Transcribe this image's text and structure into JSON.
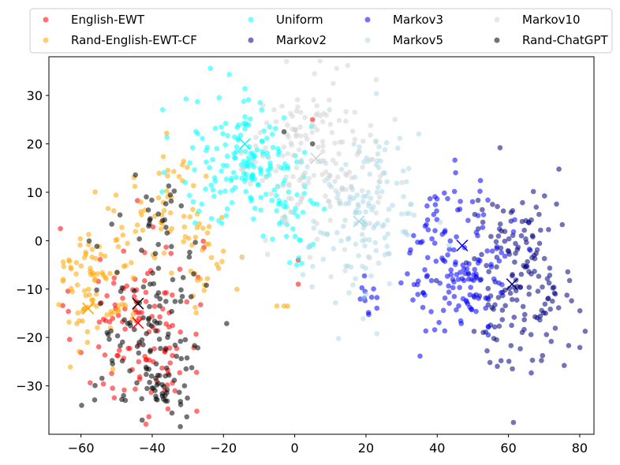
{
  "chart_data": {
    "type": "scatter",
    "title": "",
    "xlabel": "",
    "ylabel": "",
    "xlim": [
      -69,
      84
    ],
    "ylim": [
      -40,
      38
    ],
    "x_ticks": [
      -60,
      -40,
      -20,
      0,
      20,
      40,
      60,
      80
    ],
    "y_ticks": [
      -30,
      -20,
      -10,
      0,
      10,
      20,
      30
    ],
    "legend_position": "top (above plot, 4 columns)",
    "legend_columns": 4,
    "series": [
      {
        "name": "English-EWT",
        "color": "#ff0000",
        "centroid": [
          -44,
          -17
        ],
        "clusters": [
          {
            "cx": -44,
            "cy": -17,
            "sx": 9,
            "sy": 10,
            "n": 120
          }
        ],
        "points": [
          [
            1,
            -4
          ],
          [
            5,
            25
          ],
          [
            1,
            -9
          ]
        ]
      },
      {
        "name": "Rand-English-EWT-CF",
        "color": "#ffa500",
        "centroid": [
          -58,
          -14
        ],
        "clusters": [
          {
            "cx": -56,
            "cy": -8,
            "sx": 6,
            "sy": 7,
            "n": 90
          },
          {
            "cx": -35,
            "cy": 6,
            "sx": 7,
            "sy": 6,
            "n": 55
          },
          {
            "cx": -25,
            "cy": -5,
            "sx": 4,
            "sy": 5,
            "n": 25
          }
        ],
        "points": [
          [
            -5,
            -13.5
          ],
          [
            -3,
            -13.5
          ],
          [
            -2,
            -13.5
          ]
        ]
      },
      {
        "name": "Uniform",
        "color": "#00ffff",
        "centroid": [
          -14,
          20
        ],
        "clusters": [
          {
            "cx": -14,
            "cy": 16,
            "sx": 9,
            "sy": 7,
            "n": 160
          },
          {
            "cx": 0,
            "cy": 8,
            "sx": 5,
            "sy": 7,
            "n": 40
          }
        ],
        "points": []
      },
      {
        "name": "Markov2",
        "color": "#000080",
        "centroid": [
          61,
          -9
        ],
        "clusters": [
          {
            "cx": 63,
            "cy": -8,
            "sx": 8,
            "sy": 9,
            "n": 180
          }
        ],
        "points": []
      },
      {
        "name": "Markov3",
        "color": "#0000ff",
        "centroid": [
          47,
          -1
        ],
        "clusters": [
          {
            "cx": 46,
            "cy": -4,
            "sx": 7,
            "sy": 8,
            "n": 150
          },
          {
            "cx": 20,
            "cy": -12,
            "sx": 2,
            "sy": 2,
            "n": 12
          }
        ],
        "points": []
      },
      {
        "name": "Markov5",
        "color": "#add8e6",
        "centroid": [
          18,
          4
        ],
        "clusters": [
          {
            "cx": 20,
            "cy": 5,
            "sx": 8,
            "sy": 9,
            "n": 150
          }
        ],
        "points": []
      },
      {
        "name": "Markov10",
        "color": "#d3d3d3",
        "centroid": [
          6,
          17
        ],
        "clusters": [
          {
            "cx": 5,
            "cy": 17,
            "sx": 9,
            "sy": 9,
            "n": 170
          }
        ],
        "points": []
      },
      {
        "name": "Rand-ChatGPT",
        "color": "#000000",
        "centroid": [
          -44,
          -13
        ],
        "clusters": [
          {
            "cx": -40,
            "cy": -17,
            "sx": 8,
            "sy": 10,
            "n": 120
          },
          {
            "cx": -36,
            "cy": -31,
            "sx": 4,
            "sy": 3,
            "n": 25
          },
          {
            "cx": -38,
            "cy": 5,
            "sx": 4,
            "sy": 4,
            "n": 15
          }
        ],
        "points": [
          [
            -3,
            22.5
          ],
          [
            5,
            20
          ]
        ]
      }
    ]
  }
}
